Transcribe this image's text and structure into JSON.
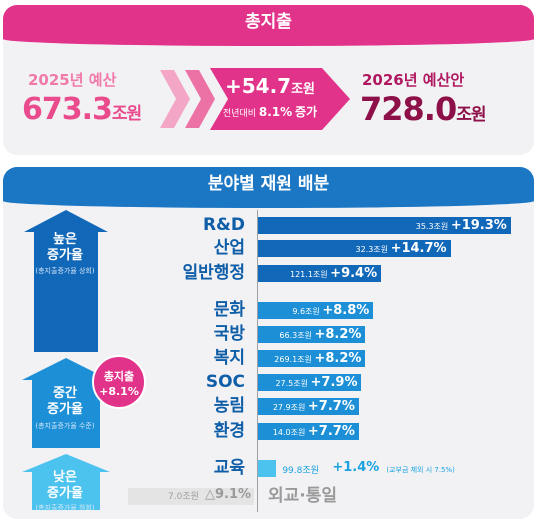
{
  "total": {
    "title": "총지출",
    "prev_label": "2025년 예산",
    "prev_amount": "673.3",
    "prev_unit": "조원",
    "increase_amount": "+54.7",
    "increase_unit": "조원",
    "increase_prefix": "전년대비",
    "increase_rate": "8.1%",
    "increase_suffix": "증가",
    "next_label": "2026년 예산안",
    "next_amount": "728.0",
    "next_unit": "조원"
  },
  "allocation": {
    "title": "분야별 재원 배분",
    "levels": [
      {
        "title1": "높은",
        "title2": "증가율",
        "sub": "(총지출증가율 상회)"
      },
      {
        "title1": "중간",
        "title2": "증가율",
        "sub": "(총지출증가율 수준)"
      },
      {
        "title1": "낮은",
        "title2": "증가율",
        "sub": "(총지출증가율 하회)"
      }
    ],
    "badge_line1": "총지출",
    "badge_line2": "+8.1%"
  },
  "chart_data": {
    "type": "bar",
    "unit": "조원",
    "categories": [
      "R&D",
      "산업",
      "일반행정",
      "문화",
      "국방",
      "복지",
      "SOC",
      "농림",
      "환경",
      "교육",
      "외교·통일"
    ],
    "amounts": [
      "35.3",
      "32.3",
      "121.1",
      "9.6",
      "66.3",
      "269.1",
      "27.5",
      "27.9",
      "14.0",
      "99.8",
      "7.0"
    ],
    "growth_rates": [
      19.3,
      14.7,
      9.4,
      8.8,
      8.2,
      8.2,
      7.9,
      7.7,
      7.7,
      1.4,
      -9.1
    ],
    "growth_labels": [
      "+19.3%",
      "+14.7%",
      "+9.4%",
      "+8.8%",
      "+8.2%",
      "+8.2%",
      "+7.9%",
      "+7.7%",
      "+7.7%",
      "+1.4%",
      "△9.1%"
    ],
    "notes": {
      "교육": "(교부금 제외 시 7.5%)"
    },
    "colors": {
      "high": "#1268b8",
      "mid": "#1c8fd6",
      "low": "#4cc3ee",
      "negative": "#e4e4e4",
      "accent": "#e2338a"
    }
  }
}
